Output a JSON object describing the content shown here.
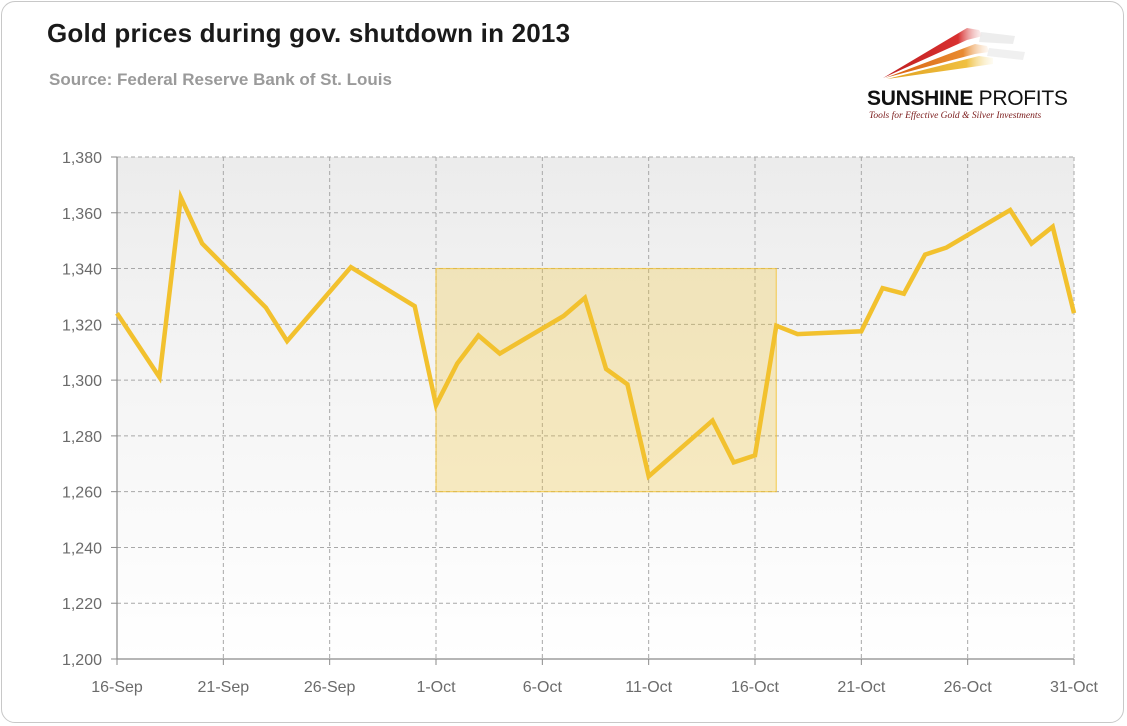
{
  "title": "Gold prices during gov. shutdown in 2013",
  "subtitle": "Source: Federal Reserve Bank of St. Louis",
  "logo": {
    "name_bold": "SUNSHINE",
    "name_light": " PROFITS",
    "tagline": "Tools for Effective Gold & Silver Investments"
  },
  "chart_data": {
    "type": "line",
    "title": "Gold prices during gov. shutdown in 2013",
    "subtitle": "Source: Federal Reserve Bank of St. Louis",
    "xlabel": "",
    "ylabel": "",
    "x_ticks": [
      "16-Sep",
      "21-Sep",
      "26-Sep",
      "1-Oct",
      "6-Oct",
      "11-Oct",
      "16-Oct",
      "21-Oct",
      "26-Oct",
      "31-Oct"
    ],
    "y_ticks": [
      "1,200",
      "1,220",
      "1,240",
      "1,260",
      "1,280",
      "1,300",
      "1,320",
      "1,340",
      "1,360",
      "1,380"
    ],
    "ylim": [
      1200,
      1380
    ],
    "xlim": [
      "2013-09-16",
      "2013-10-31"
    ],
    "grid": true,
    "line_color": "#f2c12e",
    "highlight": {
      "x_start": "2013-10-01",
      "x_end": "2013-10-17",
      "y_start": 1260,
      "y_end": 1340,
      "color": "#f2c12e"
    },
    "series": [
      {
        "x": [
          "2013-09-16",
          "2013-09-18",
          "2013-09-19",
          "2013-09-20",
          "2013-09-23",
          "2013-09-24",
          "2013-09-27",
          "2013-09-30",
          "2013-10-01",
          "2013-10-02",
          "2013-10-03",
          "2013-10-04",
          "2013-10-07",
          "2013-10-08",
          "2013-10-09",
          "2013-10-10",
          "2013-10-11",
          "2013-10-14",
          "2013-10-15",
          "2013-10-16",
          "2013-10-17",
          "2013-10-18",
          "2013-10-21",
          "2013-10-22",
          "2013-10-23",
          "2013-10-24",
          "2013-10-25",
          "2013-10-28",
          "2013-10-29",
          "2013-10-30",
          "2013-10-31"
        ],
        "values": [
          1324.0,
          1301.0,
          1365.5,
          1349.0,
          1326.0,
          1314.0,
          1340.5,
          1326.5,
          1291.0,
          1306.0,
          1316.0,
          1309.5,
          1323.0,
          1329.5,
          1304.0,
          1298.5,
          1265.5,
          1285.5,
          1270.5,
          1273.0,
          1319.5,
          1316.5,
          1317.5,
          1333.0,
          1331.0,
          1345.0,
          1347.5,
          1361.0,
          1349.0,
          1355.0,
          1324.0
        ]
      }
    ]
  }
}
